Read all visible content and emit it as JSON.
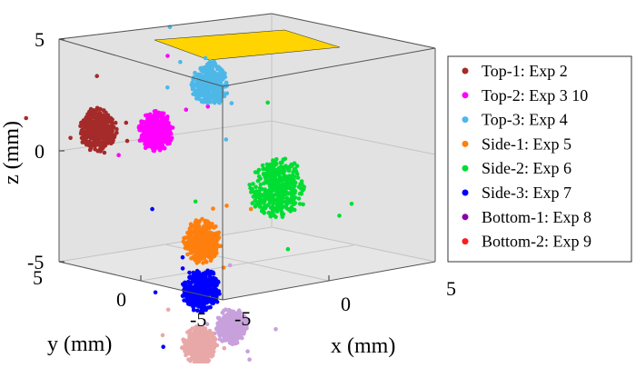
{
  "chart_data": {
    "type": "scatter",
    "dimensions": 3,
    "title": "",
    "xlabel": "x (mm)",
    "ylabel": "y (mm)",
    "zlabel": "z (mm)",
    "xlim": [
      -6,
      6
    ],
    "ylim": [
      -6,
      6
    ],
    "zlim": [
      -5,
      5
    ],
    "x_ticks": [
      "-5",
      "0",
      "5"
    ],
    "y_ticks": [
      "5",
      "0",
      "-5"
    ],
    "z_ticks": [
      "5",
      "0",
      "-5"
    ],
    "grid": true,
    "legend_position": "right",
    "top_plane": {
      "z": 5,
      "x_range": [
        -2.5,
        2.5
      ],
      "y_range": [
        -2.5,
        2.5
      ],
      "color": "#ffd400"
    },
    "series": [
      {
        "name": "Top-1: Exp 2",
        "color": "#a52a2a",
        "center": [
          -5.6,
          1.9,
          3.5
        ],
        "spread": 0.55,
        "style": "cluster"
      },
      {
        "name": "Top-2: Exp 3 10",
        "color": "#ff00ff",
        "center": [
          -3.7,
          0.1,
          3.4
        ],
        "spread": 0.5,
        "style": "cluster"
      },
      {
        "name": "Top-3: Exp 4",
        "color": "#4db8e8",
        "center": [
          -0.1,
          0.8,
          5.0
        ],
        "spread": 0.55,
        "style": "cluster"
      },
      {
        "name": "Side-1: Exp 5",
        "color": "#ff7f0e",
        "center": [
          -5.0,
          -5.0,
          -0.8
        ],
        "spread": 0.55,
        "style": "cluster"
      },
      {
        "name": "Side-2: Exp 6",
        "color": "#00dd33",
        "center": [
          5.5,
          3.2,
          -1.0
        ],
        "spread": 0.8,
        "style": "cluster"
      },
      {
        "name": "Side-3: Exp 7",
        "color": "#0000ff",
        "center": [
          -5.2,
          -5.2,
          -3.0
        ],
        "spread": 0.55,
        "style": "cluster"
      },
      {
        "name": "Bottom-1: Exp 8",
        "color": "#c8a0dc",
        "center": [
          -3.4,
          -5.1,
          -5.0
        ],
        "spread": 0.45,
        "style": "cluster"
      },
      {
        "name": "Bottom-2: Exp 9",
        "color": "#e8a8a8",
        "center": [
          -2.7,
          -1.8,
          -6.5
        ],
        "spread": 0.5,
        "style": "cluster"
      }
    ],
    "legend_marker_colors": [
      "#a52a2a",
      "#ff00ff",
      "#4db8e8",
      "#ff7f0e",
      "#00dd33",
      "#0000ff",
      "#8b00a8",
      "#ff1a1a"
    ]
  }
}
